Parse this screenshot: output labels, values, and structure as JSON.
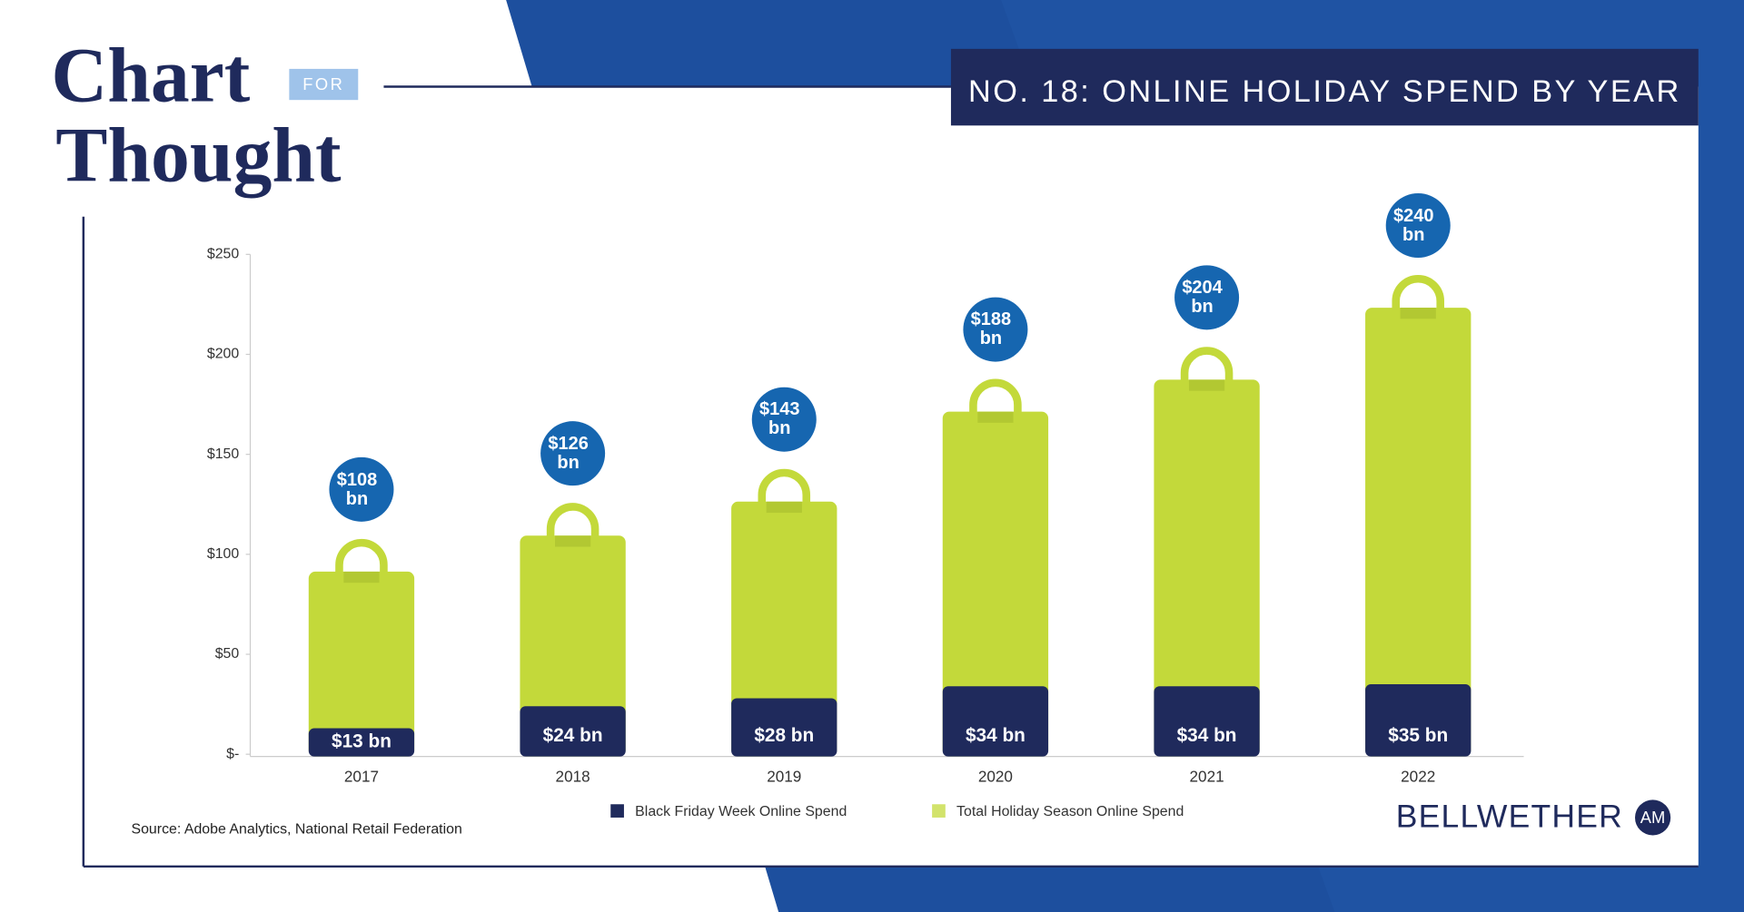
{
  "logo": {
    "line1": "Chart",
    "tag": "FOR",
    "line2": "Thought"
  },
  "brand": {
    "name": "BELLWETHER",
    "badge": "AM"
  },
  "chart_data": {
    "type": "bar",
    "title": "NO. 18: ONLINE HOLIDAY SPEND BY YEAR",
    "source": "Source: Adobe Analytics, National Retail Federation",
    "categories": [
      "2017",
      "2018",
      "2019",
      "2020",
      "2021",
      "2022"
    ],
    "series": [
      {
        "name": "Black Friday Week Online Spend",
        "color": "#1f2a5c",
        "values": [
          13,
          24,
          28,
          34,
          34,
          35
        ],
        "value_labels": [
          "$13 bn",
          "$24 bn",
          "$28 bn",
          "$34 bn",
          "$34 bn",
          "$35 bn"
        ]
      },
      {
        "name": "Total Holiday Season Online Spend",
        "color": "#c3d93a",
        "values": [
          108,
          126,
          143,
          188,
          204,
          240
        ],
        "value_labels": [
          "$108 bn",
          "$126 bn",
          "$143 bn",
          "$188 bn",
          "$204 bn",
          "$240 bn"
        ]
      }
    ],
    "ylim": [
      0,
      250
    ],
    "yticks": [
      {
        "value": 0,
        "label": "$-"
      },
      {
        "value": 50,
        "label": "$50"
      },
      {
        "value": 100,
        "label": "$100"
      },
      {
        "value": 150,
        "label": "$150"
      },
      {
        "value": 200,
        "label": "$200"
      },
      {
        "value": 250,
        "label": "$250"
      }
    ]
  }
}
